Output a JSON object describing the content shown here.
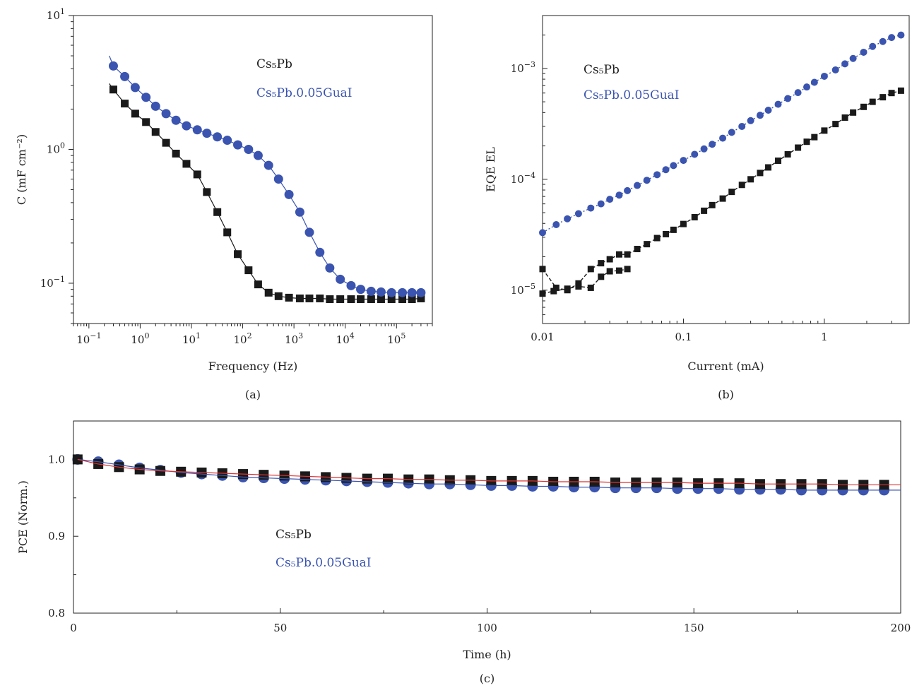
{
  "colors": {
    "black_series": "#1a1a1a",
    "blue_series": "#3a54b0",
    "fit_red": "#e03030",
    "fit_blue": "#3a54b0"
  },
  "chart_data": [
    {
      "type": "scatter",
      "panel_label": "(a)",
      "xlabel": "Frequency (Hz)",
      "ylabel": "C (mF cm⁻²)",
      "x_scale": "log",
      "y_scale": "log",
      "xlim": [
        0.05,
        500000
      ],
      "ylim": [
        0.05,
        10
      ],
      "x_ticks": [
        {
          "v": 0.1,
          "exp": "−1"
        },
        {
          "v": 1,
          "exp": "0"
        },
        {
          "v": 10,
          "exp": "1"
        },
        {
          "v": 100,
          "exp": "2"
        },
        {
          "v": 1000,
          "exp": "3"
        },
        {
          "v": 10000,
          "exp": "4"
        },
        {
          "v": 100000,
          "exp": "5"
        }
      ],
      "y_ticks": [
        {
          "v": 0.1,
          "exp": "−1"
        },
        {
          "v": 1,
          "exp": "0"
        },
        {
          "v": 10,
          "exp": "1"
        }
      ],
      "tick_base": "10",
      "legend": [
        "Cs₅Pb",
        "Cs₅Pb.0.05GuaI"
      ],
      "series": [
        {
          "name": "Cs₅Pb",
          "marker": "square",
          "color": "#1a1a1a",
          "line": "solid",
          "x": [
            0.3,
            0.5,
            0.8,
            1.3,
            2,
            3.2,
            5,
            8,
            13,
            20,
            32,
            50,
            80,
            130,
            200,
            320,
            500,
            800,
            1300,
            2000,
            3200,
            5000,
            8000,
            13000,
            20000,
            32000,
            50000,
            80000,
            130000,
            200000,
            300000
          ],
          "y": [
            2.8,
            2.2,
            1.85,
            1.6,
            1.35,
            1.12,
            0.93,
            0.78,
            0.65,
            0.48,
            0.34,
            0.24,
            0.165,
            0.125,
            0.098,
            0.085,
            0.08,
            0.078,
            0.077,
            0.077,
            0.077,
            0.076,
            0.076,
            0.076,
            0.076,
            0.076,
            0.076,
            0.076,
            0.076,
            0.076,
            0.077
          ],
          "fit_start": {
            "x": 0.25,
            "y": 3.1
          }
        },
        {
          "name": "Cs₅Pb.0.05GuaI",
          "marker": "circle",
          "color": "#3a54b0",
          "line": "solid",
          "x": [
            0.3,
            0.5,
            0.8,
            1.3,
            2,
            3.2,
            5,
            8,
            13,
            20,
            32,
            50,
            80,
            130,
            200,
            320,
            500,
            800,
            1300,
            2000,
            3200,
            5000,
            8000,
            13000,
            20000,
            32000,
            50000,
            80000,
            130000,
            200000,
            300000
          ],
          "y": [
            4.2,
            3.5,
            2.9,
            2.45,
            2.1,
            1.85,
            1.65,
            1.5,
            1.4,
            1.32,
            1.24,
            1.17,
            1.08,
            1.0,
            0.9,
            0.76,
            0.6,
            0.46,
            0.34,
            0.24,
            0.17,
            0.13,
            0.107,
            0.096,
            0.09,
            0.087,
            0.086,
            0.085,
            0.085,
            0.085,
            0.085
          ],
          "fit_start": {
            "x": 0.25,
            "y": 5.0
          }
        }
      ]
    },
    {
      "type": "scatter",
      "panel_label": "(b)",
      "xlabel": "Current (mA)",
      "ylabel": "EQE EL",
      "x_scale": "log",
      "y_scale": "log",
      "xlim": [
        0.01,
        4
      ],
      "ylim": [
        5e-06,
        0.003
      ],
      "x_ticks": [
        {
          "v": 0.01,
          "label": "0.01"
        },
        {
          "v": 0.1,
          "label": "0.1"
        },
        {
          "v": 1,
          "label": "1"
        }
      ],
      "y_ticks": [
        {
          "v": 1e-05,
          "exp": "−5"
        },
        {
          "v": 0.0001,
          "exp": "−4"
        },
        {
          "v": 0.001,
          "exp": "−3"
        }
      ],
      "tick_base": "10",
      "legend": [
        "Cs₅Pb",
        "Cs₅Pb.0.05GuaI"
      ],
      "series": [
        {
          "name": "Cs₅Pb",
          "marker": "square",
          "color": "#1a1a1a",
          "line": "dashed",
          "x": [
            0.01,
            0.0125,
            0.015,
            0.018,
            0.022,
            0.026,
            0.03,
            0.035,
            0.04,
            0.047,
            0.055,
            0.065,
            0.075,
            0.085,
            0.1,
            0.12,
            0.14,
            0.16,
            0.19,
            0.22,
            0.26,
            0.3,
            0.35,
            0.4,
            0.47,
            0.55,
            0.65,
            0.75,
            0.85,
            1.0,
            1.2,
            1.4,
            1.6,
            1.9,
            2.2,
            2.6,
            3.0,
            3.5
          ],
          "y": [
            1.55e-05,
            1.05e-05,
            1e-05,
            1.15e-05,
            1.55e-05,
            1.75e-05,
            1.9e-05,
            2.1e-05,
            2.1e-05,
            2.35e-05,
            2.6e-05,
            2.95e-05,
            3.2e-05,
            3.5e-05,
            3.95e-05,
            4.55e-05,
            5.2e-05,
            5.85e-05,
            6.7e-05,
            7.7e-05,
            8.9e-05,
            0.0001,
            0.000114,
            0.000128,
            0.000147,
            0.000168,
            0.000193,
            0.000218,
            0.00024,
            0.000275,
            0.000315,
            0.00036,
            0.0004,
            0.00045,
            0.0005,
            0.00055,
            0.0006,
            0.00063
          ],
          "y_return": [
            9.3e-06,
            9.8e-06,
            1.03e-05,
            1.08e-05,
            1.05e-05,
            1.32e-05,
            1.48e-05,
            1.5e-05,
            1.55e-05
          ],
          "x_return": [
            0.01,
            0.012,
            0.015,
            0.018,
            0.022,
            0.026,
            0.03,
            0.035,
            0.04
          ]
        },
        {
          "name": "Cs₅Pb.0.05GuaI",
          "marker": "circle",
          "color": "#3a54b0",
          "line": "dotted",
          "x": [
            0.01,
            0.0125,
            0.015,
            0.018,
            0.022,
            0.026,
            0.03,
            0.035,
            0.04,
            0.047,
            0.055,
            0.065,
            0.075,
            0.085,
            0.1,
            0.12,
            0.14,
            0.16,
            0.19,
            0.22,
            0.26,
            0.3,
            0.35,
            0.4,
            0.47,
            0.55,
            0.65,
            0.75,
            0.85,
            1.0,
            1.2,
            1.4,
            1.6,
            1.9,
            2.2,
            2.6,
            3.0,
            3.5
          ],
          "y": [
            3.3e-05,
            3.9e-05,
            4.4e-05,
            4.9e-05,
            5.5e-05,
            6e-05,
            6.6e-05,
            7.2e-05,
            7.9e-05,
            8.8e-05,
            9.8e-05,
            0.00011,
            0.000122,
            0.000133,
            0.000148,
            0.000168,
            0.000188,
            0.000207,
            0.000235,
            0.000265,
            0.0003,
            0.000338,
            0.000378,
            0.00042,
            0.000475,
            0.000535,
            0.000605,
            0.00068,
            0.00075,
            0.00085,
            0.00097,
            0.0011,
            0.00123,
            0.0014,
            0.00158,
            0.00175,
            0.0019,
            0.002
          ]
        }
      ]
    },
    {
      "type": "scatter",
      "panel_label": "(c)",
      "xlabel": "Time (h)",
      "ylabel": "PCE (Norm.)",
      "x_scale": "linear",
      "y_scale": "linear",
      "xlim": [
        0,
        200
      ],
      "ylim": [
        0.8,
        1.05
      ],
      "x_ticks": [
        0,
        50,
        100,
        150,
        200
      ],
      "y_ticks": [
        "0.8",
        "0.9",
        "1.0"
      ],
      "legend": [
        "Cs₅Pb",
        "Cs₅Pb.0.05GuaI"
      ],
      "series": [
        {
          "name": "Cs₅Pb.0.05GuaI",
          "marker": "circle",
          "color": "#3a54b0",
          "fit_color": "#3a54b0",
          "x": [
            1,
            6,
            11,
            16,
            21,
            26,
            31,
            36,
            41,
            46,
            51,
            56,
            61,
            66,
            71,
            76,
            81,
            86,
            91,
            96,
            101,
            106,
            111,
            116,
            121,
            126,
            131,
            136,
            141,
            146,
            151,
            156,
            161,
            166,
            171,
            176,
            181,
            186,
            191,
            196
          ],
          "y": [
            1.0,
            0.997,
            0.993,
            0.989,
            0.986,
            0.983,
            0.981,
            0.979,
            0.977,
            0.976,
            0.975,
            0.974,
            0.973,
            0.972,
            0.971,
            0.97,
            0.969,
            0.968,
            0.968,
            0.967,
            0.966,
            0.966,
            0.965,
            0.965,
            0.964,
            0.964,
            0.963,
            0.963,
            0.963,
            0.962,
            0.962,
            0.962,
            0.961,
            0.961,
            0.961,
            0.96,
            0.96,
            0.96,
            0.96,
            0.96
          ]
        },
        {
          "name": "Cs₅Pb",
          "marker": "square",
          "color": "#1a1a1a",
          "fit_color": "#e03030",
          "x": [
            1,
            6,
            11,
            16,
            21,
            26,
            31,
            36,
            41,
            46,
            51,
            56,
            61,
            66,
            71,
            76,
            81,
            86,
            91,
            96,
            101,
            106,
            111,
            116,
            121,
            126,
            131,
            136,
            141,
            146,
            151,
            156,
            161,
            166,
            171,
            176,
            181,
            186,
            191,
            196
          ],
          "y": [
            1.0,
            0.994,
            0.99,
            0.987,
            0.985,
            0.984,
            0.983,
            0.982,
            0.981,
            0.98,
            0.979,
            0.978,
            0.977,
            0.976,
            0.975,
            0.975,
            0.974,
            0.974,
            0.973,
            0.973,
            0.972,
            0.972,
            0.972,
            0.971,
            0.971,
            0.971,
            0.97,
            0.97,
            0.97,
            0.97,
            0.969,
            0.969,
            0.969,
            0.968,
            0.968,
            0.968,
            0.968,
            0.967,
            0.967,
            0.967
          ]
        }
      ]
    }
  ]
}
